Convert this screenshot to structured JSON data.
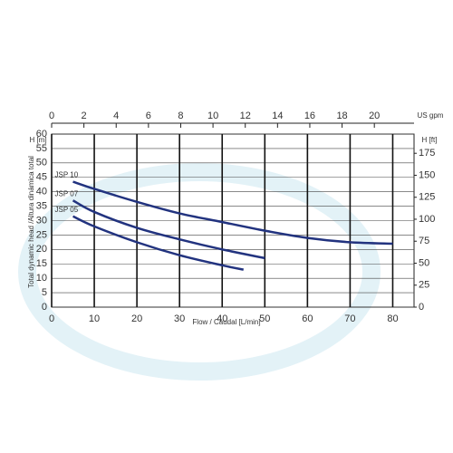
{
  "chart_data": {
    "type": "line",
    "x_label": "Flow / Caudal [L/min]",
    "y_label": "Total dynamic head /Altura dinámica total",
    "y_unit": "H [m]",
    "y2_unit": "H [ft]",
    "x2_unit": "US gpm",
    "xlim": [
      0,
      85
    ],
    "xticks": [
      0,
      10,
      20,
      30,
      40,
      50,
      60,
      70,
      80
    ],
    "ylim": [
      0,
      60
    ],
    "yticks": [
      0,
      5,
      10,
      15,
      20,
      25,
      30,
      35,
      40,
      45,
      50,
      55,
      60
    ],
    "x2lim": [
      0,
      22.46
    ],
    "x2ticks": [
      0,
      2,
      4,
      6,
      8,
      10,
      12,
      14,
      16,
      18,
      20
    ],
    "y2lim": [
      0,
      196.85
    ],
    "y2ticks": [
      0,
      25,
      50,
      75,
      100,
      125,
      150,
      175
    ],
    "grid": true,
    "series": [
      {
        "name": "JSP 10",
        "color": "#22337f",
        "x": [
          5,
          10,
          20,
          30,
          40,
          50,
          60,
          70,
          80
        ],
        "values": [
          43.5,
          41,
          36.5,
          32.5,
          29.5,
          26.5,
          24,
          22.5,
          22
        ]
      },
      {
        "name": "JSP 07",
        "color": "#22337f",
        "x": [
          5,
          10,
          20,
          30,
          40,
          50
        ],
        "values": [
          37,
          33,
          27.5,
          23.5,
          20,
          17
        ]
      },
      {
        "name": "JSP 05",
        "color": "#22337f",
        "x": [
          5,
          10,
          20,
          30,
          40,
          45
        ],
        "values": [
          31.5,
          28,
          22.5,
          18,
          14.5,
          13
        ]
      }
    ]
  }
}
